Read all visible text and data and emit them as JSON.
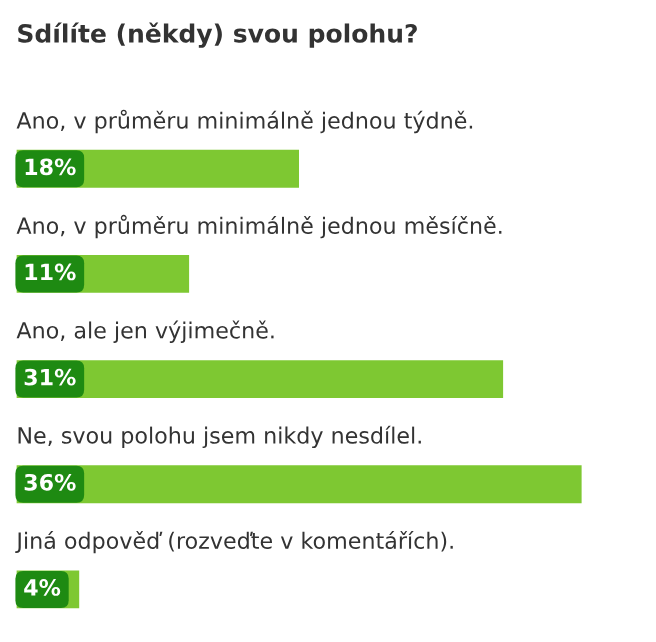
{
  "chart_data": {
    "type": "bar",
    "orientation": "horizontal",
    "title": "Sdílíte (někdy) svou polohu?",
    "categories": [
      "Ano, v průměru minimálně jednou týdně.",
      "Ano, v průměru minimálně jednou měsíčně.",
      "Ano, ale jen výjimečně.",
      "Ne, svou polohu jsem nikdy nesdílel.",
      "Jiná odpověď (rozveďte v komentářích)."
    ],
    "values": [
      18,
      11,
      31,
      36,
      4
    ],
    "value_labels": [
      "18%",
      "11%",
      "31%",
      "36%",
      "4%"
    ],
    "color": "#7ec832"
  }
}
